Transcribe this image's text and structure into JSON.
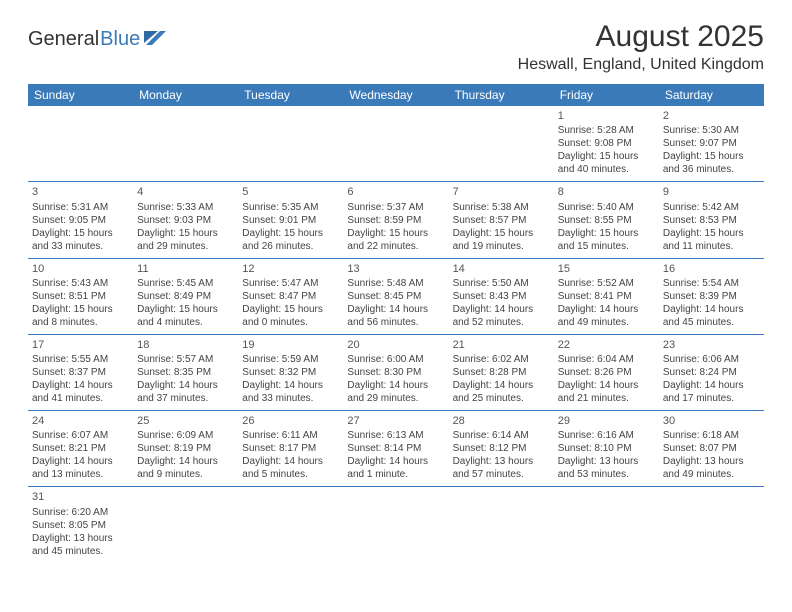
{
  "logo": {
    "word1": "General",
    "word2": "Blue"
  },
  "title": "August 2025",
  "location": "Heswall, England, United Kingdom",
  "colors": {
    "header_bg": "#3a7ab8",
    "header_fg": "#ffffff",
    "border": "#3a7ab8",
    "text": "#444444"
  },
  "day_headers": [
    "Sunday",
    "Monday",
    "Tuesday",
    "Wednesday",
    "Thursday",
    "Friday",
    "Saturday"
  ],
  "weeks": [
    [
      null,
      null,
      null,
      null,
      null,
      {
        "n": "1",
        "sr": "Sunrise: 5:28 AM",
        "ss": "Sunset: 9:08 PM",
        "d1": "Daylight: 15 hours",
        "d2": "and 40 minutes."
      },
      {
        "n": "2",
        "sr": "Sunrise: 5:30 AM",
        "ss": "Sunset: 9:07 PM",
        "d1": "Daylight: 15 hours",
        "d2": "and 36 minutes."
      }
    ],
    [
      {
        "n": "3",
        "sr": "Sunrise: 5:31 AM",
        "ss": "Sunset: 9:05 PM",
        "d1": "Daylight: 15 hours",
        "d2": "and 33 minutes."
      },
      {
        "n": "4",
        "sr": "Sunrise: 5:33 AM",
        "ss": "Sunset: 9:03 PM",
        "d1": "Daylight: 15 hours",
        "d2": "and 29 minutes."
      },
      {
        "n": "5",
        "sr": "Sunrise: 5:35 AM",
        "ss": "Sunset: 9:01 PM",
        "d1": "Daylight: 15 hours",
        "d2": "and 26 minutes."
      },
      {
        "n": "6",
        "sr": "Sunrise: 5:37 AM",
        "ss": "Sunset: 8:59 PM",
        "d1": "Daylight: 15 hours",
        "d2": "and 22 minutes."
      },
      {
        "n": "7",
        "sr": "Sunrise: 5:38 AM",
        "ss": "Sunset: 8:57 PM",
        "d1": "Daylight: 15 hours",
        "d2": "and 19 minutes."
      },
      {
        "n": "8",
        "sr": "Sunrise: 5:40 AM",
        "ss": "Sunset: 8:55 PM",
        "d1": "Daylight: 15 hours",
        "d2": "and 15 minutes."
      },
      {
        "n": "9",
        "sr": "Sunrise: 5:42 AM",
        "ss": "Sunset: 8:53 PM",
        "d1": "Daylight: 15 hours",
        "d2": "and 11 minutes."
      }
    ],
    [
      {
        "n": "10",
        "sr": "Sunrise: 5:43 AM",
        "ss": "Sunset: 8:51 PM",
        "d1": "Daylight: 15 hours",
        "d2": "and 8 minutes."
      },
      {
        "n": "11",
        "sr": "Sunrise: 5:45 AM",
        "ss": "Sunset: 8:49 PM",
        "d1": "Daylight: 15 hours",
        "d2": "and 4 minutes."
      },
      {
        "n": "12",
        "sr": "Sunrise: 5:47 AM",
        "ss": "Sunset: 8:47 PM",
        "d1": "Daylight: 15 hours",
        "d2": "and 0 minutes."
      },
      {
        "n": "13",
        "sr": "Sunrise: 5:48 AM",
        "ss": "Sunset: 8:45 PM",
        "d1": "Daylight: 14 hours",
        "d2": "and 56 minutes."
      },
      {
        "n": "14",
        "sr": "Sunrise: 5:50 AM",
        "ss": "Sunset: 8:43 PM",
        "d1": "Daylight: 14 hours",
        "d2": "and 52 minutes."
      },
      {
        "n": "15",
        "sr": "Sunrise: 5:52 AM",
        "ss": "Sunset: 8:41 PM",
        "d1": "Daylight: 14 hours",
        "d2": "and 49 minutes."
      },
      {
        "n": "16",
        "sr": "Sunrise: 5:54 AM",
        "ss": "Sunset: 8:39 PM",
        "d1": "Daylight: 14 hours",
        "d2": "and 45 minutes."
      }
    ],
    [
      {
        "n": "17",
        "sr": "Sunrise: 5:55 AM",
        "ss": "Sunset: 8:37 PM",
        "d1": "Daylight: 14 hours",
        "d2": "and 41 minutes."
      },
      {
        "n": "18",
        "sr": "Sunrise: 5:57 AM",
        "ss": "Sunset: 8:35 PM",
        "d1": "Daylight: 14 hours",
        "d2": "and 37 minutes."
      },
      {
        "n": "19",
        "sr": "Sunrise: 5:59 AM",
        "ss": "Sunset: 8:32 PM",
        "d1": "Daylight: 14 hours",
        "d2": "and 33 minutes."
      },
      {
        "n": "20",
        "sr": "Sunrise: 6:00 AM",
        "ss": "Sunset: 8:30 PM",
        "d1": "Daylight: 14 hours",
        "d2": "and 29 minutes."
      },
      {
        "n": "21",
        "sr": "Sunrise: 6:02 AM",
        "ss": "Sunset: 8:28 PM",
        "d1": "Daylight: 14 hours",
        "d2": "and 25 minutes."
      },
      {
        "n": "22",
        "sr": "Sunrise: 6:04 AM",
        "ss": "Sunset: 8:26 PM",
        "d1": "Daylight: 14 hours",
        "d2": "and 21 minutes."
      },
      {
        "n": "23",
        "sr": "Sunrise: 6:06 AM",
        "ss": "Sunset: 8:24 PM",
        "d1": "Daylight: 14 hours",
        "d2": "and 17 minutes."
      }
    ],
    [
      {
        "n": "24",
        "sr": "Sunrise: 6:07 AM",
        "ss": "Sunset: 8:21 PM",
        "d1": "Daylight: 14 hours",
        "d2": "and 13 minutes."
      },
      {
        "n": "25",
        "sr": "Sunrise: 6:09 AM",
        "ss": "Sunset: 8:19 PM",
        "d1": "Daylight: 14 hours",
        "d2": "and 9 minutes."
      },
      {
        "n": "26",
        "sr": "Sunrise: 6:11 AM",
        "ss": "Sunset: 8:17 PM",
        "d1": "Daylight: 14 hours",
        "d2": "and 5 minutes."
      },
      {
        "n": "27",
        "sr": "Sunrise: 6:13 AM",
        "ss": "Sunset: 8:14 PM",
        "d1": "Daylight: 14 hours",
        "d2": "and 1 minute."
      },
      {
        "n": "28",
        "sr": "Sunrise: 6:14 AM",
        "ss": "Sunset: 8:12 PM",
        "d1": "Daylight: 13 hours",
        "d2": "and 57 minutes."
      },
      {
        "n": "29",
        "sr": "Sunrise: 6:16 AM",
        "ss": "Sunset: 8:10 PM",
        "d1": "Daylight: 13 hours",
        "d2": "and 53 minutes."
      },
      {
        "n": "30",
        "sr": "Sunrise: 6:18 AM",
        "ss": "Sunset: 8:07 PM",
        "d1": "Daylight: 13 hours",
        "d2": "and 49 minutes."
      }
    ],
    [
      {
        "n": "31",
        "sr": "Sunrise: 6:20 AM",
        "ss": "Sunset: 8:05 PM",
        "d1": "Daylight: 13 hours",
        "d2": "and 45 minutes."
      },
      null,
      null,
      null,
      null,
      null,
      null
    ]
  ]
}
